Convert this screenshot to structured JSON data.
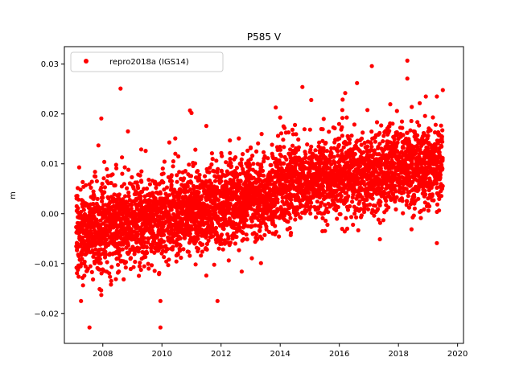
{
  "chart_data": {
    "type": "scatter",
    "title": "P585 V",
    "xlabel": "",
    "ylabel": "m",
    "xlim": [
      2006.7,
      2020.2
    ],
    "ylim": [
      -0.026,
      0.0335
    ],
    "x_ticks": [
      2008,
      2010,
      2012,
      2014,
      2016,
      2018,
      2020
    ],
    "x_tick_labels": [
      "2008",
      "2010",
      "2012",
      "2014",
      "2016",
      "2018",
      "2020"
    ],
    "y_ticks": [
      -0.02,
      -0.01,
      0.0,
      0.01,
      0.02,
      0.03
    ],
    "y_tick_labels": [
      "−0.02",
      "−0.01",
      "0.00",
      "0.01",
      "0.02",
      "0.03"
    ],
    "legend_position": "top-left",
    "grid": false,
    "series": [
      {
        "name": "repro2018a (IGS14)",
        "color": "#ff0000",
        "marker": "circle",
        "points": [
          [
            2007.2,
            0.0093
          ],
          [
            2007.55,
            -0.0228
          ],
          [
            2007.85,
            0.0137
          ],
          [
            2007.95,
            0.0191
          ],
          [
            2007.95,
            -0.0163
          ],
          [
            2008.05,
            0.0104
          ],
          [
            2008.45,
            0.0098
          ],
          [
            2008.6,
            0.0251
          ],
          [
            2008.65,
            0.0113
          ],
          [
            2008.85,
            0.0165
          ],
          [
            2009.3,
            0.0129
          ],
          [
            2009.45,
            0.0126
          ],
          [
            2009.9,
            -0.0121
          ],
          [
            2009.95,
            -0.0175
          ],
          [
            2009.95,
            -0.0228
          ],
          [
            2010.25,
            0.0143
          ],
          [
            2010.45,
            0.0151
          ],
          [
            2010.95,
            0.0207
          ],
          [
            2011.0,
            0.0202
          ],
          [
            2011.5,
            0.0176
          ],
          [
            2011.5,
            -0.0124
          ],
          [
            2012.3,
            0.0147
          ],
          [
            2012.6,
            0.0151
          ],
          [
            2012.7,
            -0.0116
          ],
          [
            2013.0,
            0.0133
          ],
          [
            2013.25,
            0.0141
          ],
          [
            2013.35,
            -0.0099
          ],
          [
            2013.85,
            0.0213
          ],
          [
            2014.0,
            0.0193
          ],
          [
            2014.5,
            0.0178
          ],
          [
            2014.75,
            0.0254
          ],
          [
            2015.05,
            0.0228
          ],
          [
            2015.8,
            0.0173
          ],
          [
            2016.1,
            0.0208
          ],
          [
            2016.2,
            0.0242
          ],
          [
            2016.6,
            0.0262
          ],
          [
            2016.95,
            0.0208
          ],
          [
            2017.1,
            0.0296
          ],
          [
            2017.5,
            0.0156
          ],
          [
            2017.95,
            0.0206
          ],
          [
            2018.3,
            0.0307
          ],
          [
            2018.3,
            0.0271
          ],
          [
            2018.45,
            0.0214
          ],
          [
            2018.9,
            0.0196
          ],
          [
            2019.3,
            0.0235
          ],
          [
            2019.5,
            0.0248
          ],
          [
            2019.3,
            -0.0059
          ]
        ],
        "trend": {
          "description": "dense daily scatter",
          "segments": [
            {
              "x": [
                2007.1,
                2010.0
              ],
              "mean": [
                -0.004,
                -0.001
              ],
              "spread": 0.0042
            },
            {
              "x": [
                2010.0,
                2012.0
              ],
              "mean": [
                0.0,
                0.001
              ],
              "spread": 0.0042
            },
            {
              "x": [
                2012.0,
                2013.9
              ],
              "mean": [
                0.002,
                0.004
              ],
              "spread": 0.004
            },
            {
              "x": [
                2013.9,
                2019.5
              ],
              "mean": [
                0.006,
                0.01
              ],
              "spread": 0.004
            }
          ]
        }
      }
    ]
  }
}
